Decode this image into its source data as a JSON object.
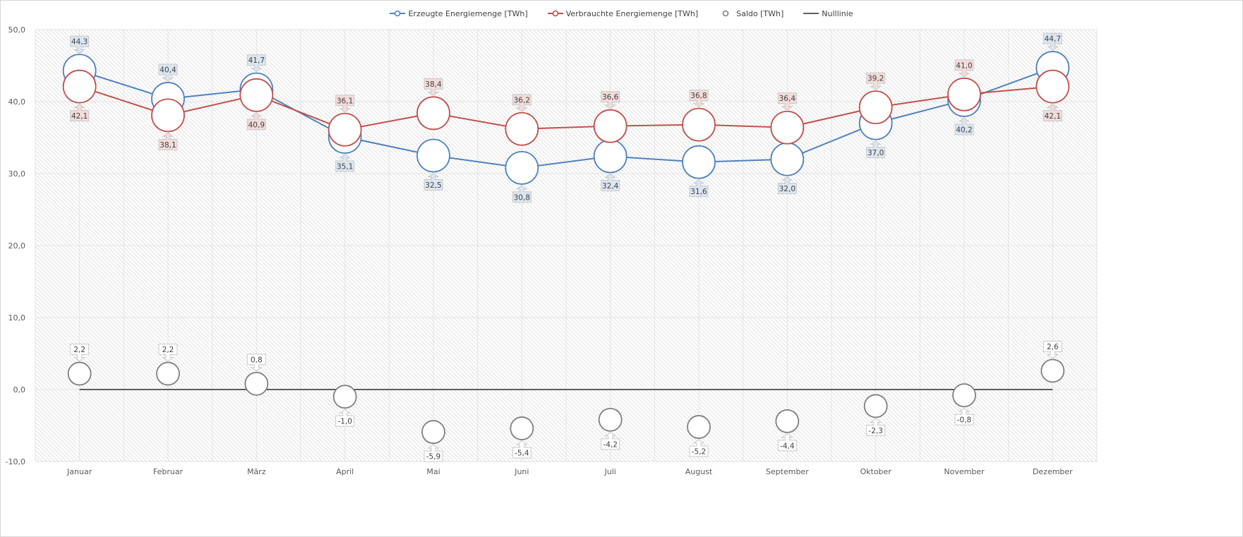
{
  "chart_data": {
    "type": "line",
    "title": "",
    "xlabel": "",
    "ylabel": "",
    "ylim": [
      -10,
      50
    ],
    "yticks": [
      "50,0",
      "40,0",
      "30,0",
      "20,0",
      "10,0",
      "0,0",
      "-10,0"
    ],
    "ytick_values": [
      50,
      40,
      30,
      20,
      10,
      0,
      -10
    ],
    "grid": true,
    "legend_position": "top-center",
    "categories": [
      "Januar",
      "Februar",
      "März",
      "April",
      "Mai",
      "Juni",
      "Juli",
      "August",
      "September",
      "Oktober",
      "November",
      "Dezember"
    ],
    "series": [
      {
        "name": "Erzeugte Energiemenge [TWh]",
        "color": "#4f81bd",
        "label_bg": "#dce6f1",
        "values": [
          44.3,
          40.4,
          41.7,
          35.1,
          32.5,
          30.8,
          32.4,
          31.6,
          32.0,
          37.0,
          40.2,
          44.7
        ],
        "labels": [
          "44,3",
          "40,4",
          "41,7",
          "35,1",
          "32,5",
          "30,8",
          "32,4",
          "31,6",
          "32,0",
          "37,0",
          "40,2",
          "44,7"
        ],
        "label_pos": [
          "above",
          "above",
          "above",
          "below",
          "below",
          "below",
          "below",
          "below",
          "below",
          "below",
          "below",
          "above"
        ]
      },
      {
        "name": "Verbrauchte Energiemenge [TWh]",
        "color": "#c0504d",
        "label_bg": "#f2dcdb",
        "values": [
          42.1,
          38.1,
          40.9,
          36.1,
          38.4,
          36.2,
          36.6,
          36.8,
          36.4,
          39.2,
          41.0,
          42.1
        ],
        "labels": [
          "42,1",
          "38,1",
          "40,9",
          "36,1",
          "38,4",
          "36,2",
          "36,6",
          "36,8",
          "36,4",
          "39,2",
          "41,0",
          "42,1"
        ],
        "label_pos": [
          "below",
          "below",
          "below",
          "above",
          "above",
          "above",
          "above",
          "above",
          "above",
          "above",
          "above",
          "below"
        ]
      },
      {
        "name": "Saldo [TWh]",
        "color": "#7f7f7f",
        "label_bg": "#ffffff",
        "values": [
          2.2,
          2.2,
          0.8,
          -1.0,
          -5.9,
          -5.4,
          -4.2,
          -5.2,
          -4.4,
          -2.3,
          -0.8,
          2.6
        ],
        "labels": [
          "2,2",
          "2,2",
          "0,8",
          "-1,0",
          "-5,9",
          "-5,4",
          "-4,2",
          "-5,2",
          "-4,4",
          "-2,3",
          "-0,8",
          "2,6"
        ],
        "label_pos": [
          "above",
          "above",
          "above",
          "below",
          "below",
          "below",
          "below",
          "below",
          "below",
          "below",
          "below",
          "above"
        ]
      },
      {
        "name": "Nulllinie",
        "color": "#000000",
        "values": [
          0,
          0,
          0,
          0,
          0,
          0,
          0,
          0,
          0,
          0,
          0,
          0
        ]
      }
    ]
  }
}
